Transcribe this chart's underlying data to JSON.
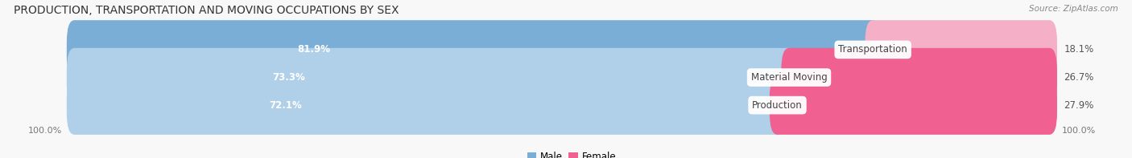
{
  "title": "PRODUCTION, TRANSPORTATION AND MOVING OCCUPATIONS BY SEX",
  "source": "Source: ZipAtlas.com",
  "categories": [
    "Transportation",
    "Material Moving",
    "Production"
  ],
  "male_values": [
    81.9,
    73.3,
    72.1
  ],
  "female_values": [
    18.1,
    26.7,
    27.9
  ],
  "male_color": "#7aaed6",
  "male_color_light": "#b0cfe8",
  "female_color": "#f06090",
  "female_color_light": "#f5b0c8",
  "bar_bg_color": "#dde6f0",
  "label_color_male": "#ffffff",
  "label_color_female": "#555555",
  "cat_label_color": "#444444",
  "title_fontsize": 10,
  "source_fontsize": 7.5,
  "label_fontsize": 8.5,
  "category_fontsize": 8.5,
  "axis_label_fontsize": 8,
  "background_color": "#f8f8f8",
  "bar_height": 0.52,
  "bar_gap": 0.18,
  "figsize": [
    14.06,
    1.97
  ],
  "dpi": 100,
  "xlim_left": -2,
  "xlim_right": 110
}
